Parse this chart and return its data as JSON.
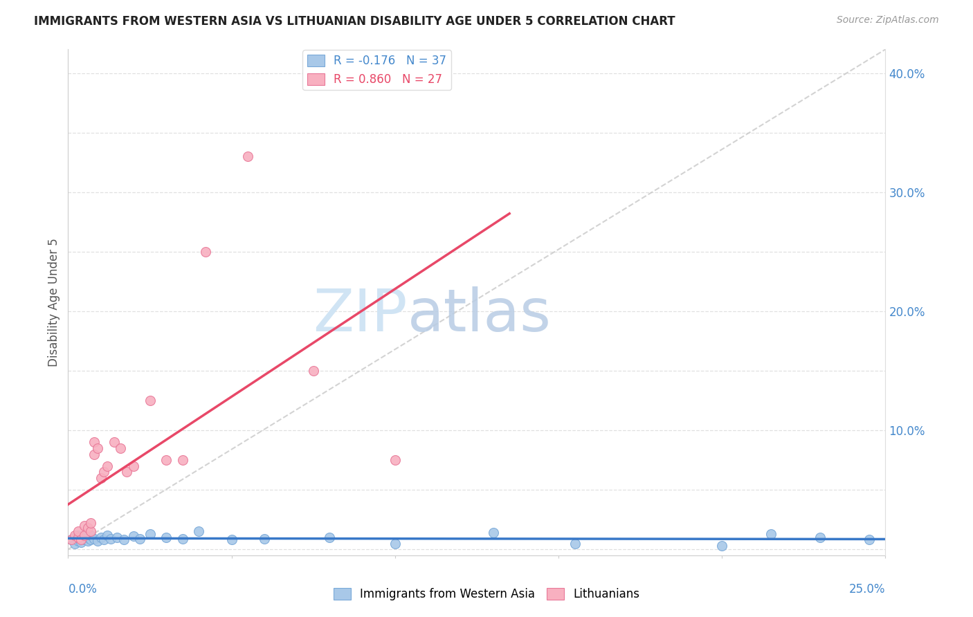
{
  "title": "IMMIGRANTS FROM WESTERN ASIA VS LITHUANIAN DISABILITY AGE UNDER 5 CORRELATION CHART",
  "source": "Source: ZipAtlas.com",
  "ylabel": "Disability Age Under 5",
  "xlim": [
    0.0,
    0.25
  ],
  "ylim": [
    -0.005,
    0.42
  ],
  "right_ytick_vals": [
    0.0,
    0.1,
    0.2,
    0.3,
    0.4
  ],
  "right_ytick_labels": [
    "",
    "10.0%",
    "20.0%",
    "30.0%",
    "40.0%"
  ],
  "xtick_vals": [
    0.0,
    0.05,
    0.1,
    0.15,
    0.2,
    0.25
  ],
  "legend1_label": "R = -0.176   N = 37",
  "legend2_label": "R = 0.860   N = 27",
  "legend1_face": "#a8c8e8",
  "legend2_face": "#f8b0c0",
  "trendline1_color": "#3878c8",
  "trendline2_color": "#e84868",
  "trendline_dashed_color": "#c8c8c8",
  "scatter1_color": "#a8c8e8",
  "scatter1_edge": "#78a8d8",
  "scatter2_color": "#f8b0c0",
  "scatter2_edge": "#e87898",
  "blue_scatter_x": [
    0.001,
    0.002,
    0.002,
    0.003,
    0.003,
    0.004,
    0.004,
    0.005,
    0.005,
    0.006,
    0.006,
    0.007,
    0.007,
    0.008,
    0.009,
    0.01,
    0.011,
    0.012,
    0.013,
    0.015,
    0.017,
    0.02,
    0.022,
    0.025,
    0.03,
    0.035,
    0.04,
    0.05,
    0.06,
    0.08,
    0.1,
    0.13,
    0.155,
    0.2,
    0.215,
    0.23,
    0.245
  ],
  "blue_scatter_y": [
    0.008,
    0.005,
    0.01,
    0.007,
    0.012,
    0.006,
    0.009,
    0.008,
    0.011,
    0.007,
    0.01,
    0.008,
    0.012,
    0.009,
    0.007,
    0.01,
    0.008,
    0.012,
    0.009,
    0.01,
    0.008,
    0.011,
    0.009,
    0.013,
    0.01,
    0.009,
    0.015,
    0.008,
    0.009,
    0.01,
    0.005,
    0.014,
    0.005,
    0.003,
    0.013,
    0.01,
    0.008
  ],
  "pink_scatter_x": [
    0.001,
    0.002,
    0.003,
    0.003,
    0.004,
    0.005,
    0.005,
    0.006,
    0.007,
    0.007,
    0.008,
    0.008,
    0.009,
    0.01,
    0.011,
    0.012,
    0.014,
    0.016,
    0.018,
    0.02,
    0.025,
    0.03,
    0.035,
    0.042,
    0.055,
    0.075,
    0.1
  ],
  "pink_scatter_y": [
    0.008,
    0.012,
    0.01,
    0.015,
    0.008,
    0.012,
    0.02,
    0.018,
    0.015,
    0.022,
    0.08,
    0.09,
    0.085,
    0.06,
    0.065,
    0.07,
    0.09,
    0.085,
    0.065,
    0.07,
    0.125,
    0.075,
    0.075,
    0.25,
    0.33,
    0.15,
    0.075
  ],
  "watermark_zip": "ZIP",
  "watermark_atlas": "atlas",
  "background_color": "#ffffff",
  "grid_color": "#e0e0e0",
  "title_color": "#222222",
  "source_color": "#999999",
  "axis_label_color": "#555555",
  "tick_color": "#4488cc",
  "bottom_legend1": "Immigrants from Western Asia",
  "bottom_legend2": "Lithuanians"
}
